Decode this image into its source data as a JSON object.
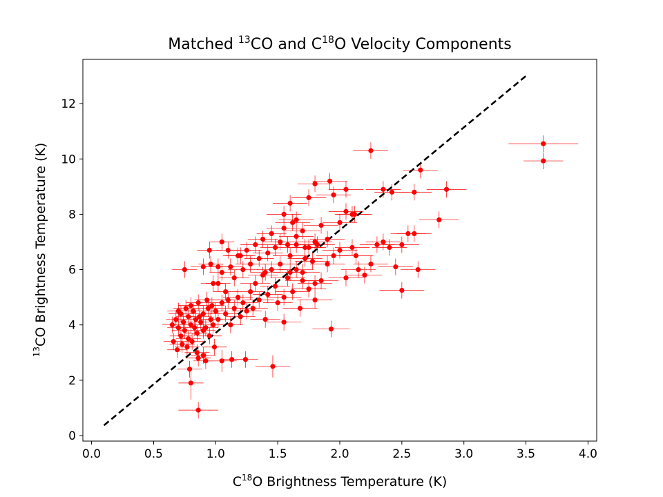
{
  "chart_data": {
    "type": "scatter",
    "title": {
      "pre": "Matched ",
      "sup1": "13",
      "mid": "CO and C",
      "sup2": "18",
      "post": "O Velocity Components"
    },
    "xlabel": {
      "pre": "C",
      "sup": "18",
      "post": "O Brightness Temperature (K)"
    },
    "ylabel": {
      "sup": "13",
      "post": "CO Brightness Temperature (K)"
    },
    "xlim": [
      -0.07,
      4.07
    ],
    "ylim": [
      -0.2,
      13.6
    ],
    "xticks": [
      0.0,
      0.5,
      1.0,
      1.5,
      2.0,
      2.5,
      3.0,
      3.5,
      4.0
    ],
    "xtick_labels": [
      "0.0",
      "0.5",
      "1.0",
      "1.5",
      "2.0",
      "2.5",
      "3.0",
      "3.5",
      "4.0"
    ],
    "yticks": [
      0,
      2,
      4,
      6,
      8,
      10,
      12
    ],
    "ytick_labels": [
      "0",
      "2",
      "4",
      "6",
      "8",
      "10",
      "12"
    ],
    "grid": false,
    "point_color": "#ff0000",
    "errorbar_color": "#ff0000",
    "reference_line": {
      "style": "dashed",
      "color": "#000000",
      "x": [
        0.1,
        3.5
      ],
      "y": [
        0.37,
        13.0
      ]
    },
    "series": [
      {
        "points": [
          [
            0.65,
            4.0,
            0.08,
            0.3
          ],
          [
            0.68,
            4.2,
            0.08,
            0.3
          ],
          [
            0.7,
            3.9,
            0.09,
            0.3
          ],
          [
            0.72,
            4.4,
            0.1,
            0.3
          ],
          [
            0.74,
            4.1,
            0.1,
            0.3
          ],
          [
            0.75,
            3.8,
            0.1,
            0.3
          ],
          [
            0.76,
            4.6,
            0.1,
            0.3
          ],
          [
            0.78,
            4.3,
            0.1,
            0.3
          ],
          [
            0.8,
            4.0,
            0.1,
            0.3
          ],
          [
            0.82,
            4.5,
            0.1,
            0.3
          ],
          [
            0.84,
            4.2,
            0.1,
            0.3
          ],
          [
            0.85,
            3.7,
            0.1,
            0.3
          ],
          [
            0.86,
            4.8,
            0.1,
            0.3
          ],
          [
            0.88,
            4.1,
            0.1,
            0.3
          ],
          [
            0.9,
            4.4,
            0.1,
            0.3
          ],
          [
            0.92,
            3.9,
            0.1,
            0.3
          ],
          [
            0.94,
            4.6,
            0.1,
            0.3
          ],
          [
            0.96,
            4.2,
            0.1,
            0.3
          ],
          [
            0.98,
            4.0,
            0.1,
            0.3
          ],
          [
            1.0,
            4.5,
            0.1,
            0.3
          ],
          [
            0.7,
            4.5,
            0.09,
            0.3
          ],
          [
            0.72,
            3.6,
            0.09,
            0.3
          ],
          [
            0.78,
            3.5,
            0.1,
            0.3
          ],
          [
            0.8,
            4.7,
            0.1,
            0.3
          ],
          [
            0.83,
            3.9,
            0.1,
            0.3
          ],
          [
            0.87,
            4.3,
            0.1,
            0.3
          ],
          [
            0.9,
            3.8,
            0.1,
            0.3
          ],
          [
            0.93,
            4.9,
            0.1,
            0.3
          ],
          [
            0.95,
            3.6,
            0.1,
            0.3
          ],
          [
            0.97,
            4.7,
            0.1,
            0.3
          ],
          [
            0.66,
            3.4,
            0.08,
            0.3
          ],
          [
            0.69,
            3.1,
            0.08,
            0.3
          ],
          [
            0.73,
            3.3,
            0.1,
            0.3
          ],
          [
            0.77,
            3.2,
            0.1,
            0.3
          ],
          [
            0.81,
            3.4,
            0.1,
            0.3
          ],
          [
            0.85,
            3.0,
            0.1,
            0.3
          ],
          [
            0.86,
            2.8,
            0.1,
            0.3
          ],
          [
            0.9,
            2.9,
            0.1,
            0.3
          ],
          [
            0.92,
            2.7,
            0.1,
            0.3
          ],
          [
            0.99,
            3.2,
            0.1,
            0.3
          ],
          [
            0.79,
            2.4,
            0.1,
            0.3
          ],
          [
            0.8,
            1.9,
            0.1,
            0.6
          ],
          [
            0.86,
            0.92,
            0.16,
            0.3
          ],
          [
            1.05,
            2.7,
            0.12,
            0.4
          ],
          [
            1.13,
            2.75,
            0.1,
            0.3
          ],
          [
            1.24,
            2.75,
            0.1,
            0.3
          ],
          [
            1.46,
            2.5,
            0.14,
            0.4
          ],
          [
            1.02,
            4.2,
            0.1,
            0.3
          ],
          [
            1.05,
            4.8,
            0.1,
            0.3
          ],
          [
            1.08,
            4.4,
            0.1,
            0.3
          ],
          [
            1.1,
            4.9,
            0.1,
            0.3
          ],
          [
            1.12,
            4.0,
            0.1,
            0.3
          ],
          [
            1.15,
            4.6,
            0.12,
            0.3
          ],
          [
            1.18,
            5.0,
            0.12,
            0.3
          ],
          [
            1.2,
            4.3,
            0.12,
            0.3
          ],
          [
            1.22,
            4.8,
            0.12,
            0.3
          ],
          [
            1.25,
            4.5,
            0.12,
            0.3
          ],
          [
            1.28,
            5.2,
            0.12,
            0.3
          ],
          [
            1.3,
            4.6,
            0.12,
            0.3
          ],
          [
            1.32,
            5.5,
            0.12,
            0.3
          ],
          [
            1.35,
            4.9,
            0.12,
            0.3
          ],
          [
            1.38,
            5.8,
            0.12,
            0.3
          ],
          [
            1.4,
            4.2,
            0.12,
            0.3
          ],
          [
            1.42,
            5.1,
            0.12,
            0.3
          ],
          [
            1.45,
            6.0,
            0.12,
            0.3
          ],
          [
            1.48,
            5.4,
            0.12,
            0.3
          ],
          [
            1.5,
            4.8,
            0.12,
            0.3
          ],
          [
            1.52,
            6.2,
            0.14,
            0.3
          ],
          [
            1.55,
            5.0,
            0.14,
            0.3
          ],
          [
            1.58,
            5.7,
            0.14,
            0.3
          ],
          [
            1.6,
            6.5,
            0.14,
            0.3
          ],
          [
            1.62,
            5.2,
            0.14,
            0.3
          ],
          [
            1.65,
            6.0,
            0.14,
            0.3
          ],
          [
            1.68,
            4.6,
            0.14,
            0.3
          ],
          [
            1.7,
            5.6,
            0.14,
            0.3
          ],
          [
            1.72,
            6.8,
            0.14,
            0.3
          ],
          [
            1.75,
            5.3,
            0.14,
            0.3
          ],
          [
            1.78,
            6.3,
            0.14,
            0.3
          ],
          [
            1.8,
            5.5,
            0.14,
            0.3
          ],
          [
            1.82,
            6.9,
            0.14,
            0.3
          ],
          [
            1.02,
            5.5,
            0.1,
            0.3
          ],
          [
            1.05,
            5.9,
            0.1,
            0.3
          ],
          [
            1.08,
            5.2,
            0.1,
            0.3
          ],
          [
            1.12,
            6.1,
            0.1,
            0.3
          ],
          [
            1.15,
            5.7,
            0.12,
            0.3
          ],
          [
            1.18,
            6.5,
            0.12,
            0.3
          ],
          [
            1.22,
            6.0,
            0.12,
            0.3
          ],
          [
            1.25,
            6.7,
            0.12,
            0.3
          ],
          [
            1.28,
            6.2,
            0.12,
            0.3
          ],
          [
            1.32,
            6.9,
            0.12,
            0.3
          ],
          [
            1.35,
            6.4,
            0.12,
            0.3
          ],
          [
            1.38,
            7.1,
            0.12,
            0.3
          ],
          [
            1.42,
            6.6,
            0.12,
            0.3
          ],
          [
            1.45,
            7.3,
            0.12,
            0.3
          ],
          [
            1.48,
            6.8,
            0.12,
            0.3
          ],
          [
            1.52,
            7.0,
            0.14,
            0.3
          ],
          [
            1.55,
            7.5,
            0.14,
            0.3
          ],
          [
            1.58,
            6.9,
            0.14,
            0.3
          ],
          [
            1.62,
            7.7,
            0.14,
            0.3
          ],
          [
            1.65,
            7.2,
            0.14,
            0.3
          ],
          [
            1.7,
            7.4,
            0.14,
            0.3
          ],
          [
            1.75,
            6.8,
            0.14,
            0.3
          ],
          [
            1.8,
            7.0,
            0.14,
            0.3
          ],
          [
            1.85,
            7.6,
            0.14,
            0.3
          ],
          [
            1.9,
            7.1,
            0.14,
            0.3
          ],
          [
            0.75,
            6.0,
            0.1,
            0.3
          ],
          [
            0.98,
            5.5,
            0.1,
            0.3
          ],
          [
            1.02,
            6.1,
            0.1,
            0.3
          ],
          [
            0.95,
            6.7,
            0.1,
            0.3
          ],
          [
            1.05,
            7.0,
            0.1,
            0.3
          ],
          [
            0.96,
            6.2,
            0.1,
            0.3
          ],
          [
            0.9,
            6.1,
            0.1,
            0.3
          ],
          [
            1.1,
            6.7,
            0.1,
            0.3
          ],
          [
            1.2,
            6.5,
            0.12,
            0.3
          ],
          [
            1.4,
            5.9,
            0.12,
            0.3
          ],
          [
            1.55,
            8.0,
            0.14,
            0.3
          ],
          [
            1.6,
            8.4,
            0.14,
            0.3
          ],
          [
            1.65,
            7.8,
            0.14,
            0.3
          ],
          [
            1.75,
            8.6,
            0.14,
            0.3
          ],
          [
            1.8,
            9.1,
            0.14,
            0.3
          ],
          [
            1.92,
            9.2,
            0.14,
            0.3
          ],
          [
            1.95,
            8.7,
            0.14,
            0.3
          ],
          [
            2.05,
            8.9,
            0.14,
            0.3
          ],
          [
            2.1,
            8.0,
            0.14,
            0.3
          ],
          [
            2.25,
            10.3,
            0.14,
            0.3
          ],
          [
            1.85,
            5.6,
            0.14,
            0.3
          ],
          [
            1.9,
            6.2,
            0.14,
            0.3
          ],
          [
            1.95,
            6.5,
            0.14,
            0.3
          ],
          [
            2.0,
            6.7,
            0.14,
            0.3
          ],
          [
            2.05,
            5.7,
            0.14,
            0.3
          ],
          [
            2.1,
            6.8,
            0.14,
            0.3
          ],
          [
            2.15,
            6.0,
            0.14,
            0.3
          ],
          [
            2.2,
            5.8,
            0.14,
            0.3
          ],
          [
            2.25,
            6.2,
            0.14,
            0.3
          ],
          [
            2.3,
            6.9,
            0.14,
            0.3
          ],
          [
            2.35,
            7.0,
            0.14,
            0.3
          ],
          [
            2.4,
            6.8,
            0.14,
            0.3
          ],
          [
            2.45,
            6.1,
            0.14,
            0.3
          ],
          [
            2.5,
            6.9,
            0.14,
            0.3
          ],
          [
            2.55,
            7.3,
            0.14,
            0.3
          ],
          [
            2.6,
            7.3,
            0.14,
            0.3
          ],
          [
            2.63,
            6.0,
            0.14,
            0.3
          ],
          [
            2.65,
            9.6,
            0.14,
            0.3
          ],
          [
            2.6,
            8.8,
            0.14,
            0.3
          ],
          [
            2.8,
            7.8,
            0.16,
            0.3
          ],
          [
            2.86,
            8.9,
            0.16,
            0.3
          ],
          [
            2.35,
            8.9,
            0.14,
            0.3
          ],
          [
            2.42,
            8.8,
            0.14,
            0.3
          ],
          [
            2.5,
            5.25,
            0.18,
            0.3
          ],
          [
            2.13,
            6.5,
            0.14,
            0.3
          ],
          [
            2.0,
            7.7,
            0.14,
            0.3
          ],
          [
            2.05,
            8.1,
            0.14,
            0.3
          ],
          [
            2.12,
            8.0,
            0.14,
            0.3
          ],
          [
            1.93,
            3.85,
            0.15,
            0.3
          ],
          [
            1.55,
            4.1,
            0.14,
            0.3
          ],
          [
            1.8,
            4.9,
            0.14,
            0.3
          ],
          [
            1.7,
            5.9,
            0.14,
            0.3
          ],
          [
            1.6,
            5.9,
            0.14,
            0.3
          ],
          [
            1.65,
            6.9,
            0.14,
            0.3
          ],
          [
            1.72,
            6.4,
            0.14,
            0.3
          ],
          [
            3.64,
            10.55,
            0.28,
            0.3
          ],
          [
            3.64,
            9.93,
            0.16,
            0.3
          ]
        ]
      }
    ]
  }
}
